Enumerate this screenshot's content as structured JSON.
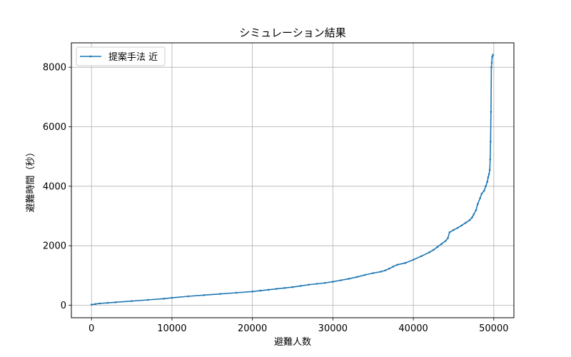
{
  "chart_data": {
    "type": "line",
    "title": "シミュレーション結果",
    "xlabel": "避難人数",
    "ylabel": "避難時間（秒）",
    "xlim": [
      -2500,
      52500
    ],
    "ylim": [
      -420,
      8820
    ],
    "xticks": [
      0,
      10000,
      20000,
      30000,
      40000,
      50000
    ],
    "yticks": [
      0,
      2000,
      4000,
      6000,
      8000
    ],
    "xtick_labels": [
      "0",
      "10000",
      "20000",
      "30000",
      "40000",
      "50000"
    ],
    "ytick_labels": [
      "0",
      "2000",
      "4000",
      "6000",
      "8000"
    ],
    "grid": true,
    "legend_position": "top-left",
    "series": [
      {
        "name": "提案手法 近",
        "color": "#1f77b4",
        "marker": "point",
        "x": [
          0,
          500,
          1000,
          2000,
          3000,
          5000,
          7000,
          9000,
          10000,
          12000,
          14000,
          16000,
          18000,
          20000,
          21000,
          22000,
          23000,
          24000,
          25000,
          26000,
          27000,
          28000,
          29000,
          30000,
          31000,
          32000,
          33000,
          34000,
          35000,
          36000,
          36500,
          37000,
          37500,
          38000,
          39000,
          40000,
          41000,
          42000,
          42500,
          43000,
          43500,
          44000,
          44300,
          44500,
          45000,
          45500,
          46000,
          46500,
          47000,
          47300,
          47500,
          47800,
          48000,
          48300,
          48500,
          48800,
          49000,
          49200,
          49300,
          49400,
          49500,
          49550,
          49600,
          49650,
          49700,
          49750,
          49800,
          49900
        ],
        "y": [
          20,
          40,
          60,
          80,
          100,
          140,
          180,
          220,
          250,
          300,
          340,
          380,
          420,
          460,
          490,
          520,
          550,
          580,
          610,
          650,
          690,
          720,
          750,
          790,
          840,
          890,
          950,
          1020,
          1080,
          1130,
          1170,
          1230,
          1300,
          1360,
          1420,
          1530,
          1650,
          1780,
          1860,
          1960,
          2060,
          2160,
          2260,
          2450,
          2530,
          2600,
          2680,
          2770,
          2860,
          2950,
          3050,
          3200,
          3400,
          3600,
          3750,
          3850,
          4000,
          4150,
          4300,
          4400,
          4550,
          4900,
          5500,
          6500,
          8000,
          8150,
          8350,
          8420
        ]
      }
    ]
  }
}
